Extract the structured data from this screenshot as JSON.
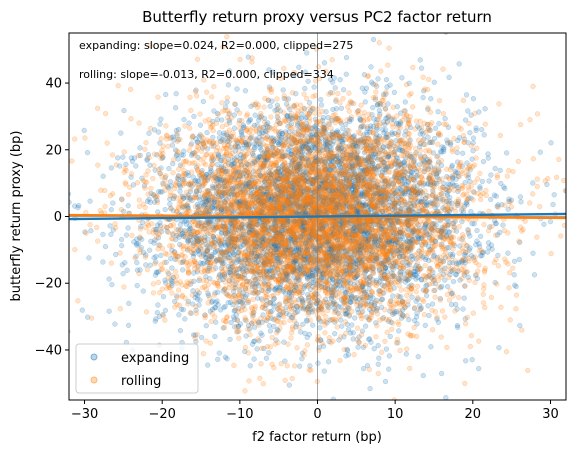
{
  "chart_data": {
    "type": "scatter",
    "title": "Butterfly return proxy versus PC2 factor return",
    "xlabel": "f2 factor return (bp)",
    "ylabel": "butterfly return proxy (bp)",
    "xlim": [
      -32,
      32
    ],
    "ylim": [
      -55,
      55
    ],
    "xticks": [
      -30,
      -20,
      -10,
      0,
      10,
      20,
      30
    ],
    "yticks": [
      -40,
      -20,
      0,
      20,
      40
    ],
    "xtick_labels": [
      "−30",
      "−20",
      "−10",
      "0",
      "10",
      "20",
      "30"
    ],
    "ytick_labels": [
      "−40",
      "−20",
      "0",
      "20",
      "40"
    ],
    "grid": false,
    "reference_lines": {
      "x": 0,
      "y": 0
    },
    "legend": {
      "placement": "lower-left"
    },
    "annotations": [
      "expanding: slope=0.024, R2=0.000, clipped=275",
      "rolling: slope=-0.013, R2=0.000, clipped=334"
    ],
    "series": [
      {
        "name": "expanding",
        "color": "#1f77b4",
        "n_points_est": 5000,
        "x_sd_est": 10,
        "y_sd_est": 16,
        "fit": {
          "slope": 0.024,
          "intercept": 0.0
        }
      },
      {
        "name": "rolling",
        "color": "#ff7f0e",
        "n_points_est": 5000,
        "x_sd_est": 10,
        "y_sd_est": 16,
        "fit": {
          "slope": -0.013,
          "intercept": 0.0
        }
      }
    ]
  }
}
